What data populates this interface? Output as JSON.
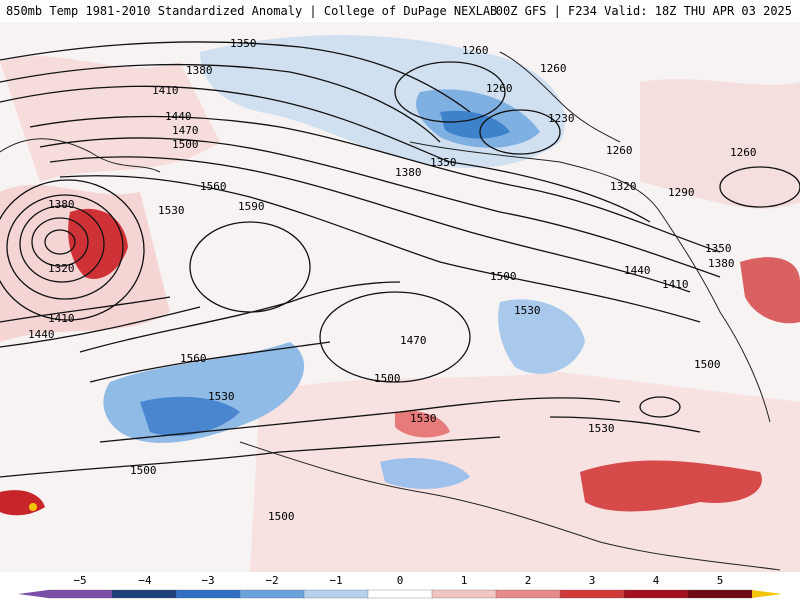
{
  "header": {
    "left_title": "850mb Temp 1981-2010 Standardized Anomaly | College of DuPage NEXLAB",
    "right_title": "00Z GFS | F234 Valid: 18Z THU APR 03 2025"
  },
  "map": {
    "contour_labels": [
      "1350",
      "1380",
      "1410",
      "1440",
      "1470",
      "1500",
      "1380",
      "1320",
      "1410",
      "1440",
      "1560",
      "1530",
      "1590",
      "1560",
      "1530",
      "1500",
      "1260",
      "1260",
      "1260",
      "1230",
      "1260",
      "1260",
      "1350",
      "1380",
      "1320",
      "1290",
      "1350",
      "1380",
      "1440",
      "1410",
      "1500",
      "1530",
      "1470",
      "1500",
      "1530",
      "1530",
      "1500",
      "1500"
    ]
  },
  "colorbar": {
    "ticks": [
      "−5",
      "−4",
      "−3",
      "−2",
      "−1",
      "0",
      "1",
      "2",
      "3",
      "4",
      "5"
    ],
    "colors": {
      "m5": "#7b4fa8",
      "m4": "#1d3f7a",
      "m3": "#2f6fc4",
      "m2": "#6aa2dd",
      "m1": "#b5d1ee",
      "zero": "#ffffff",
      "p1": "#f2c4c4",
      "p2": "#e68a8a",
      "p3": "#d23a3a",
      "p4": "#a5101e",
      "p5": "#6e0a14",
      "end": "#f5c400"
    }
  }
}
